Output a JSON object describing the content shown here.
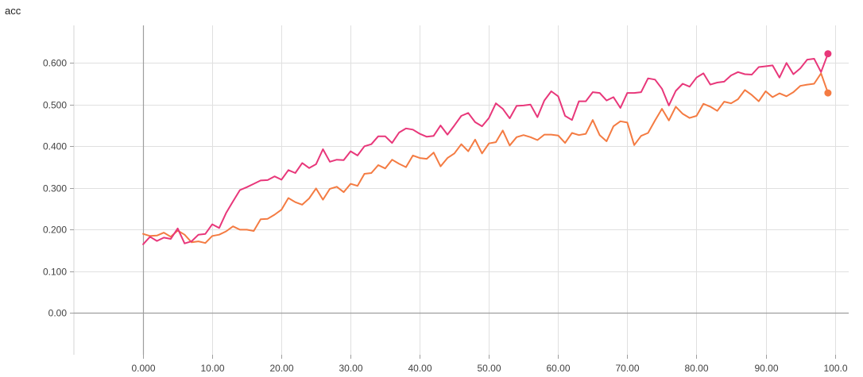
{
  "chart_data": {
    "type": "line",
    "title": "acc",
    "xlabel": "",
    "ylabel": "",
    "xlim": [
      -10,
      102
    ],
    "ylim": [
      -0.1,
      0.69
    ],
    "xticks": [
      "0.000",
      "10.00",
      "20.00",
      "30.00",
      "40.00",
      "50.00",
      "60.00",
      "70.00",
      "80.00",
      "90.00",
      "100.0"
    ],
    "xtick_values": [
      0,
      10,
      20,
      30,
      40,
      50,
      60,
      70,
      80,
      90,
      100
    ],
    "yticks": [
      "0.00",
      "0.100",
      "0.200",
      "0.300",
      "0.400",
      "0.500",
      "0.600"
    ],
    "ytick_values": [
      0,
      0.1,
      0.2,
      0.3,
      0.4,
      0.5,
      0.6
    ],
    "grid": true,
    "series": [
      {
        "color": "#e8377a",
        "x": [
          0,
          1,
          2,
          3,
          4,
          5,
          6,
          7,
          8,
          9,
          10,
          11,
          12,
          13,
          14,
          15,
          16,
          17,
          18,
          19,
          20,
          21,
          22,
          23,
          24,
          25,
          26,
          27,
          28,
          29,
          30,
          31,
          32,
          33,
          34,
          35,
          36,
          37,
          38,
          39,
          40,
          41,
          42,
          43,
          44,
          45,
          46,
          47,
          48,
          49,
          50,
          51,
          52,
          53,
          54,
          55,
          56,
          57,
          58,
          59,
          60,
          61,
          62,
          63,
          64,
          65,
          66,
          67,
          68,
          69,
          70,
          71,
          72,
          73,
          74,
          75,
          76,
          77,
          78,
          79,
          80,
          81,
          82,
          83,
          84,
          85,
          86,
          87,
          88,
          89,
          90,
          91,
          92,
          93,
          94,
          95,
          96,
          97,
          98,
          99
        ],
        "values": [
          0.165,
          0.183,
          0.173,
          0.181,
          0.178,
          0.203,
          0.167,
          0.172,
          0.188,
          0.19,
          0.213,
          0.204,
          0.24,
          0.268,
          0.295,
          0.302,
          0.31,
          0.318,
          0.319,
          0.328,
          0.32,
          0.343,
          0.336,
          0.36,
          0.348,
          0.357,
          0.393,
          0.363,
          0.368,
          0.367,
          0.388,
          0.378,
          0.4,
          0.405,
          0.424,
          0.424,
          0.408,
          0.433,
          0.443,
          0.44,
          0.43,
          0.423,
          0.425,
          0.45,
          0.428,
          0.45,
          0.473,
          0.48,
          0.458,
          0.448,
          0.468,
          0.503,
          0.49,
          0.467,
          0.497,
          0.498,
          0.5,
          0.47,
          0.51,
          0.532,
          0.52,
          0.473,
          0.463,
          0.508,
          0.508,
          0.53,
          0.528,
          0.51,
          0.518,
          0.492,
          0.528,
          0.528,
          0.53,
          0.563,
          0.56,
          0.538,
          0.498,
          0.533,
          0.55,
          0.543,
          0.565,
          0.575,
          0.548,
          0.553,
          0.555,
          0.57,
          0.578,
          0.573,
          0.572,
          0.59,
          0.592,
          0.594,
          0.565,
          0.6,
          0.573,
          0.587,
          0.608,
          0.61,
          0.578,
          0.622
        ]
      },
      {
        "color": "#f47b42",
        "x": [
          0,
          1,
          2,
          3,
          4,
          5,
          6,
          7,
          8,
          9,
          10,
          11,
          12,
          13,
          14,
          15,
          16,
          17,
          18,
          19,
          20,
          21,
          22,
          23,
          24,
          25,
          26,
          27,
          28,
          29,
          30,
          31,
          32,
          33,
          34,
          35,
          36,
          37,
          38,
          39,
          40,
          41,
          42,
          43,
          44,
          45,
          46,
          47,
          48,
          49,
          50,
          51,
          52,
          53,
          54,
          55,
          56,
          57,
          58,
          59,
          60,
          61,
          62,
          63,
          64,
          65,
          66,
          67,
          68,
          69,
          70,
          71,
          72,
          73,
          74,
          75,
          76,
          77,
          78,
          79,
          80,
          81,
          82,
          83,
          84,
          85,
          86,
          87,
          88,
          89,
          90,
          91,
          92,
          93,
          94,
          95,
          96,
          97,
          98,
          99
        ],
        "values": [
          0.19,
          0.185,
          0.186,
          0.193,
          0.183,
          0.198,
          0.188,
          0.17,
          0.172,
          0.168,
          0.185,
          0.188,
          0.196,
          0.208,
          0.2,
          0.2,
          0.197,
          0.225,
          0.226,
          0.236,
          0.248,
          0.276,
          0.266,
          0.26,
          0.275,
          0.299,
          0.272,
          0.298,
          0.303,
          0.29,
          0.31,
          0.305,
          0.334,
          0.336,
          0.355,
          0.347,
          0.368,
          0.358,
          0.35,
          0.378,
          0.372,
          0.37,
          0.385,
          0.352,
          0.372,
          0.383,
          0.405,
          0.388,
          0.416,
          0.383,
          0.407,
          0.41,
          0.438,
          0.402,
          0.422,
          0.427,
          0.422,
          0.415,
          0.428,
          0.428,
          0.426,
          0.408,
          0.432,
          0.427,
          0.43,
          0.463,
          0.427,
          0.412,
          0.448,
          0.46,
          0.457,
          0.403,
          0.425,
          0.432,
          0.462,
          0.49,
          0.462,
          0.495,
          0.478,
          0.468,
          0.473,
          0.502,
          0.495,
          0.485,
          0.507,
          0.503,
          0.513,
          0.535,
          0.523,
          0.508,
          0.532,
          0.518,
          0.527,
          0.52,
          0.53,
          0.545,
          0.548,
          0.55,
          0.575,
          0.528
        ]
      }
    ]
  }
}
